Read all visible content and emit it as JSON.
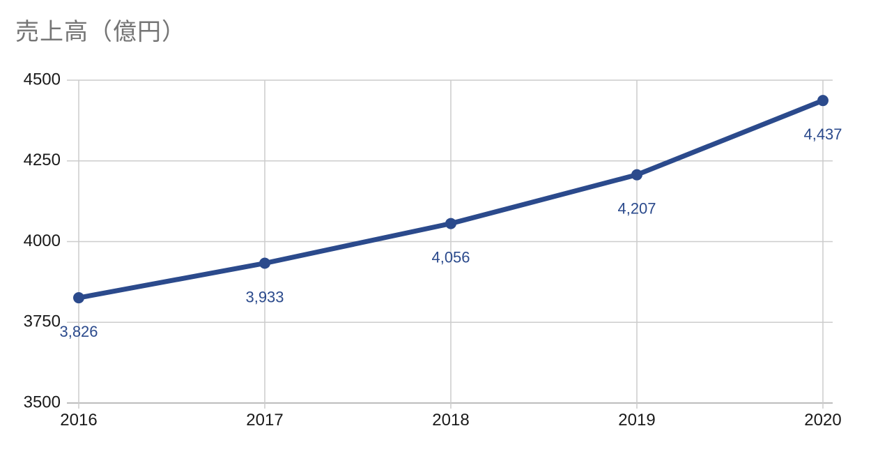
{
  "chart_data": {
    "type": "line",
    "title": "売上高（億円）",
    "xlabel": "",
    "ylabel": "",
    "categories": [
      "2016",
      "2017",
      "2018",
      "2019",
      "2020"
    ],
    "series": [
      {
        "values": [
          3826,
          3933,
          4056,
          4207,
          4437
        ],
        "labels": [
          "3,826",
          "3,933",
          "4,056",
          "4,207",
          "4,437"
        ],
        "color": "#2b4a8c"
      }
    ],
    "ylim": [
      3500,
      4500
    ],
    "yticks": [
      "3500",
      "3750",
      "4000",
      "4250",
      "4500"
    ],
    "grid": true,
    "legend": "none"
  }
}
